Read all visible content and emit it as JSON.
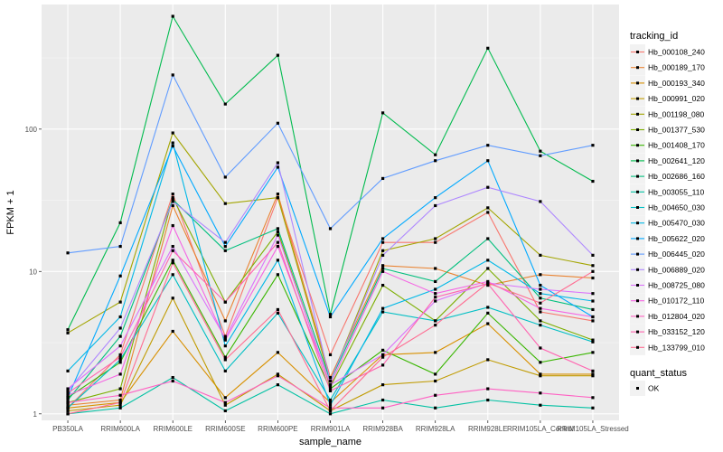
{
  "chart_data": {
    "type": "line",
    "title": "",
    "xlabel": "sample_name",
    "ylabel": "FPKM + 1",
    "y_scale": "log10",
    "ylim": [
      0.9,
      750
    ],
    "y_ticks": [
      1,
      10,
      100
    ],
    "y_tick_labels": [
      "1",
      "10",
      "100"
    ],
    "grid": true,
    "legend_position": "right",
    "categories": [
      "PB350LA",
      "RRIM600LA",
      "RRIM600LE",
      "RRIM600SE",
      "RRIM600PE",
      "RRIM901LA",
      "RRIM928BA",
      "RRIM928LA",
      "RRIM928LE",
      "RRIM105LA_Control",
      "RRIM105LA_Stressed"
    ],
    "legend": {
      "title": "tracking_id",
      "entries": [
        "Hb_000108_240",
        "Hb_000189_170",
        "Hb_000193_340",
        "Hb_000991_020",
        "Hb_001198_080",
        "Hb_001377_530",
        "Hb_001408_170",
        "Hb_002641_120",
        "Hb_002686_160",
        "Hb_003055_110",
        "Hb_004650_030",
        "Hb_005470_030",
        "Hb_005622_020",
        "Hb_006445_020",
        "Hb_006889_020",
        "Hb_008725_080",
        "Hb_010172_110",
        "Hb_012804_020",
        "Hb_033152_120",
        "Hb_133799_010"
      ]
    },
    "shape_legend": {
      "title": "quant_status",
      "entries": [
        "OK"
      ]
    },
    "series": [
      {
        "name": "Hb_000108_240",
        "color": "#F8766D",
        "values": [
          1.1,
          2.6,
          35,
          3.5,
          33,
          2.6,
          16,
          16,
          26,
          5.2,
          4.5
        ]
      },
      {
        "name": "Hb_000189_170",
        "color": "#EA8331",
        "values": [
          1.15,
          1.25,
          29,
          4.5,
          35,
          1.8,
          11,
          10.5,
          8,
          9.5,
          9
        ]
      },
      {
        "name": "Hb_000193_340",
        "color": "#D89000",
        "values": [
          1.1,
          1.2,
          3.8,
          1.3,
          2.7,
          1.2,
          2.6,
          2.7,
          4.3,
          1.9,
          1.9
        ]
      },
      {
        "name": "Hb_000991_020",
        "color": "#C09B00",
        "values": [
          1.05,
          1.15,
          6.5,
          1.15,
          1.9,
          1.05,
          1.6,
          1.7,
          2.4,
          1.85,
          1.85
        ]
      },
      {
        "name": "Hb_001198_080",
        "color": "#A3A500",
        "values": [
          3.7,
          6.1,
          94,
          30,
          33,
          1.7,
          14,
          17,
          28,
          13,
          11
        ]
      },
      {
        "name": "Hb_001377_530",
        "color": "#7CAE00",
        "values": [
          1.2,
          1.5,
          33,
          6.1,
          19,
          1.55,
          8,
          4.5,
          10.5,
          4.5,
          3.3
        ]
      },
      {
        "name": "Hb_001408_170",
        "color": "#39B600",
        "values": [
          1.3,
          2.3,
          12,
          2.5,
          9.5,
          1.5,
          2.8,
          1.9,
          5.1,
          2.3,
          2.7
        ]
      },
      {
        "name": "Hb_002641_120",
        "color": "#00BB4E",
        "values": [
          3.9,
          22,
          620,
          150,
          330,
          5.0,
          130,
          66,
          370,
          70,
          43
        ]
      },
      {
        "name": "Hb_002686_160",
        "color": "#00BF7D",
        "values": [
          1.25,
          3.5,
          32,
          14,
          20,
          1.7,
          10.5,
          8.5,
          17,
          6.5,
          5.4
        ]
      },
      {
        "name": "Hb_003055_110",
        "color": "#00C1A3",
        "values": [
          1.0,
          1.1,
          1.8,
          1.05,
          1.6,
          1.0,
          1.25,
          1.1,
          1.25,
          1.15,
          1.1
        ]
      },
      {
        "name": "Hb_004650_030",
        "color": "#00BFC4",
        "values": [
          1.1,
          2.4,
          9.5,
          2.0,
          5.1,
          1.25,
          5.2,
          4.5,
          5.6,
          4.2,
          3.2
        ]
      },
      {
        "name": "Hb_005470_030",
        "color": "#00B8E7",
        "values": [
          2.0,
          4.8,
          80,
          3.0,
          12,
          1.15,
          5.5,
          7.5,
          12,
          7,
          6.2
        ]
      },
      {
        "name": "Hb_005622_020",
        "color": "#00A9FF",
        "values": [
          1.3,
          9.3,
          76,
          15,
          54,
          4.8,
          17,
          33,
          60,
          8,
          4.8
        ]
      },
      {
        "name": "Hb_006445_020",
        "color": "#619CFF",
        "values": [
          13.5,
          15,
          240,
          46,
          110,
          20,
          45,
          60,
          77,
          65,
          77
        ]
      },
      {
        "name": "Hb_006889_020",
        "color": "#AE87FF",
        "values": [
          1.45,
          4.0,
          31,
          16,
          58,
          1.7,
          13,
          29,
          39,
          31,
          13
        ]
      },
      {
        "name": "Hb_008725_080",
        "color": "#DB72FB",
        "values": [
          1.5,
          3.0,
          15,
          3.4,
          18,
          1.6,
          2.6,
          6.2,
          8.3,
          7.5,
          7
        ]
      },
      {
        "name": "Hb_010172_110",
        "color": "#F564E3",
        "values": [
          1.35,
          1.9,
          21,
          3.3,
          15,
          1.6,
          10,
          7,
          8.5,
          5.5,
          4.8
        ]
      },
      {
        "name": "Hb_012804_020",
        "color": "#FF61C3",
        "values": [
          1.2,
          1.35,
          1.7,
          1.2,
          1.85,
          1.1,
          1.1,
          1.35,
          1.5,
          1.4,
          1.3
        ]
      },
      {
        "name": "Hb_033152_120",
        "color": "#FF64B0",
        "values": [
          1.4,
          2.5,
          14,
          6.1,
          16,
          1.45,
          2.2,
          6.6,
          8.2,
          2.9,
          2.0
        ]
      },
      {
        "name": "Hb_133799_010",
        "color": "#FF6C91",
        "values": [
          1.0,
          1.2,
          11.5,
          2.4,
          5.4,
          1.05,
          2.5,
          4.2,
          8.3,
          6,
          10
        ]
      }
    ]
  }
}
